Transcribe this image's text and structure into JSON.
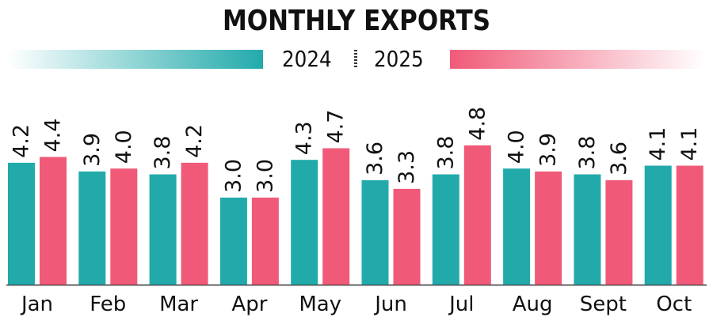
{
  "title": "MONTHLY EXPORTS",
  "colors": {
    "2024": "#22aaab",
    "2025": "#f05a78"
  },
  "legend": {
    "left": "2024",
    "right": "2025"
  },
  "chart_data": {
    "type": "bar",
    "title": "MONTHLY EXPORTS",
    "categories": [
      "Jan",
      "Feb",
      "Mar",
      "Apr",
      "May",
      "Jun",
      "Jul",
      "Aug",
      "Sept",
      "Oct"
    ],
    "series": [
      {
        "name": "2024",
        "values": [
          4.2,
          3.9,
          3.8,
          3.0,
          4.3,
          3.6,
          3.8,
          4.0,
          3.8,
          4.1
        ]
      },
      {
        "name": "2025",
        "values": [
          4.4,
          4.0,
          4.2,
          3.0,
          4.7,
          3.3,
          4.8,
          3.9,
          3.6,
          4.1
        ]
      }
    ],
    "xlabel": "",
    "ylabel": "",
    "ylim": [
      0,
      6.6
    ],
    "grid": false,
    "legend_position": "top"
  }
}
